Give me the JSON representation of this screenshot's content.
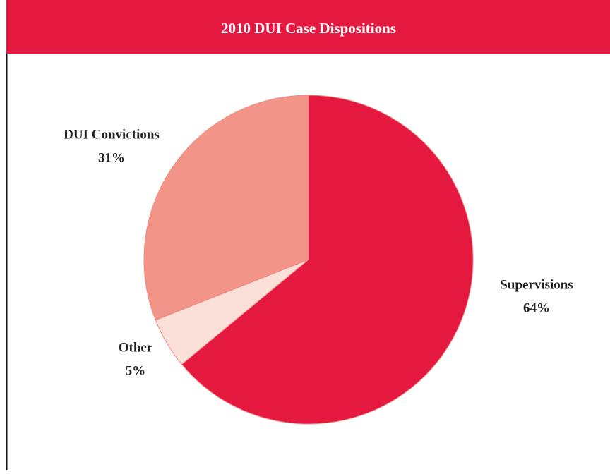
{
  "chart_data": {
    "type": "pie",
    "title": "2010 DUI Case Dispositions",
    "categories": [
      "Supervisions",
      "Other",
      "DUI Convictions"
    ],
    "values": [
      64,
      5,
      31
    ],
    "value_labels": [
      "64%",
      "5%",
      "31%"
    ],
    "colors": [
      "#e5183f",
      "#fbe0da",
      "#f29487"
    ]
  }
}
